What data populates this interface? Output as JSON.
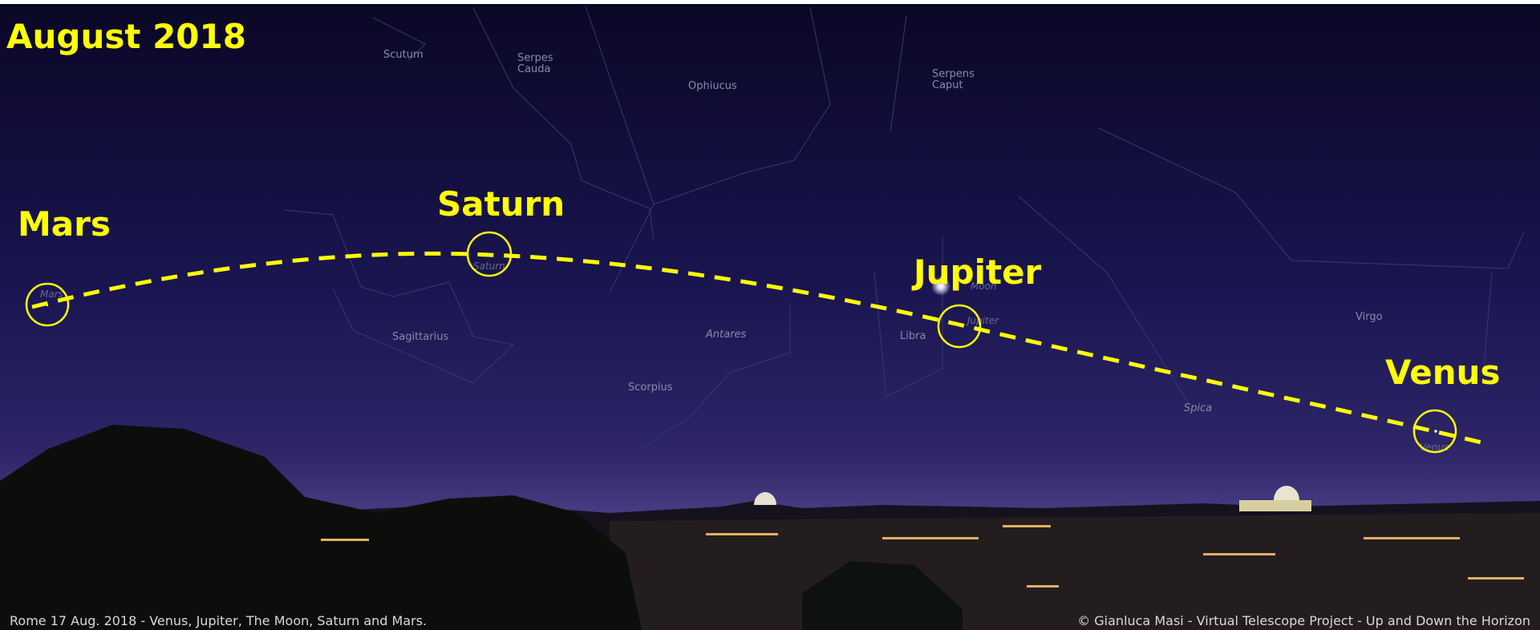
{
  "title": "August 2018",
  "planets": [
    {
      "label": "Mars",
      "tag": "Mars"
    },
    {
      "label": "Saturn",
      "tag": "Saturn"
    },
    {
      "label": "Jupiter",
      "tag": "Jupiter"
    },
    {
      "label": "Venus",
      "tag": "Venus"
    }
  ],
  "moon_tag": "Moon",
  "constellations": [
    "Scutum",
    "Serpes",
    "Cauda",
    "Ophiucus",
    "Serpens",
    "Caput",
    "Sagittarius",
    "Antares",
    "Scorpius",
    "Libra",
    "Virgo",
    "Spica"
  ],
  "caption_left": "Rome 17 Aug. 2018 - Venus, Jupiter, The Moon, Saturn and Mars.",
  "caption_right": "© Gianluca Masi - Virtual Telescope Project - Up and Down the Horizon"
}
